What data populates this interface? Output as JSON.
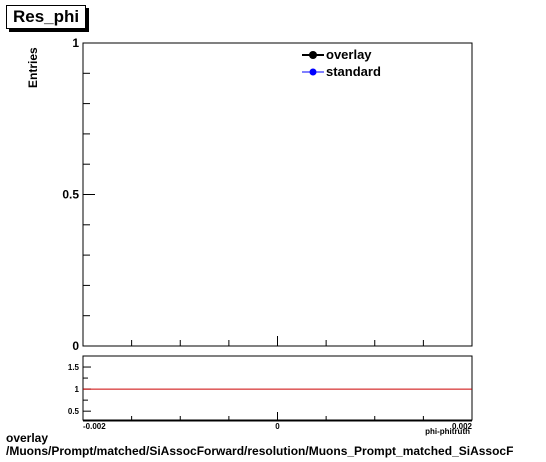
{
  "title": "Res_phi",
  "caption": {
    "line1": "overlay",
    "line2": "/Muons/Prompt/matched/SiAssocForward/resolution/Muons_Prompt_matched_SiAssocF"
  },
  "chart_data": [
    {
      "type": "line",
      "ylabel": "Entries",
      "xlabel": "",
      "ylim": [
        0,
        1
      ],
      "y_ticks": [
        "0",
        "0.5",
        "1"
      ],
      "legend_placement": "top-right",
      "series": [
        {
          "name": "overlay",
          "color": "#000000",
          "x": [],
          "y": []
        },
        {
          "name": "standard",
          "color": "#0000ff",
          "x": [],
          "y": []
        }
      ]
    },
    {
      "type": "line",
      "xlabel": "phi-phitruth",
      "xlim": [
        -0.002,
        0.002
      ],
      "ylim": [
        0.3,
        1.75
      ],
      "x_ticks": [
        "-0.002",
        "0",
        "0.002"
      ],
      "y_ticks": [
        "0.5",
        "1",
        "1.5"
      ],
      "series": [
        {
          "color": "#cc0000",
          "x": [
            -0.002,
            0.002
          ],
          "y": [
            1,
            1
          ]
        }
      ]
    }
  ]
}
